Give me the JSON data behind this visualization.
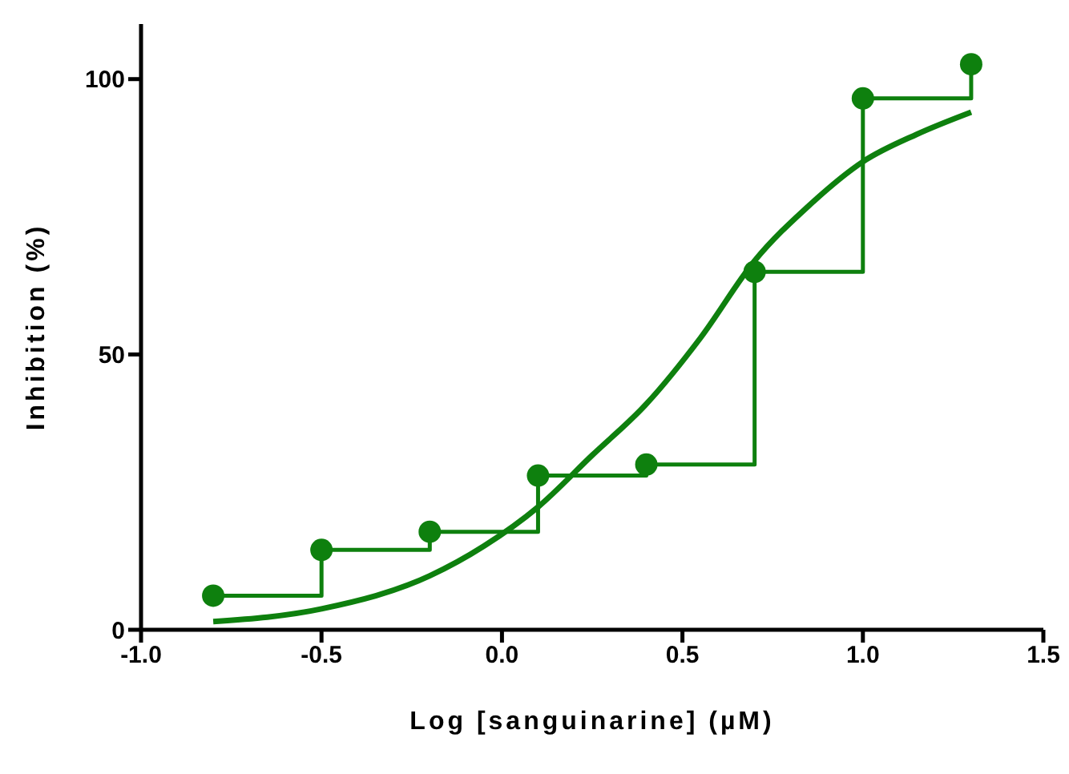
{
  "chart_data": {
    "type": "step",
    "xlabel": "Log [sanguinarine] (µM)",
    "ylabel": "Inhibition (%)",
    "xlim": [
      -1,
      1.5
    ],
    "xticks": [
      {
        "value": -1,
        "label": "-1.0"
      },
      {
        "value": -0.5,
        "label": "-0.5"
      },
      {
        "value": 0,
        "label": "0.0"
      },
      {
        "value": 0.5,
        "label": "0.5"
      },
      {
        "value": 1,
        "label": "1.0"
      },
      {
        "value": 1.5,
        "label": "1.5"
      }
    ],
    "ylim": [
      0,
      110
    ],
    "yticks": [
      0,
      50,
      100
    ],
    "series": [
      {
        "type": "step",
        "color": "#0e800e",
        "marker": "circle",
        "line_style": "solid",
        "x": [
          -0.8,
          -0.5,
          -0.2,
          0.1,
          0.4,
          0.7,
          1.0,
          1.3
        ],
        "values": [
          6.2,
          14.5,
          17.8,
          28,
          30,
          65,
          96.5,
          102.7
        ]
      },
      {
        "type": "line",
        "color": "#0e800e",
        "marker": "none",
        "line_style": "solid",
        "x": [
          -0.8,
          -0.5,
          -0.2,
          -0.05,
          0.1,
          0.25,
          0.4,
          0.55,
          0.7,
          0.85,
          1.0,
          1.15,
          1.3
        ],
        "values": [
          1.5,
          3.8,
          9.8,
          15.2,
          22.3,
          31.7,
          41,
          53,
          67,
          77,
          85,
          90,
          94
        ]
      }
    ]
  }
}
